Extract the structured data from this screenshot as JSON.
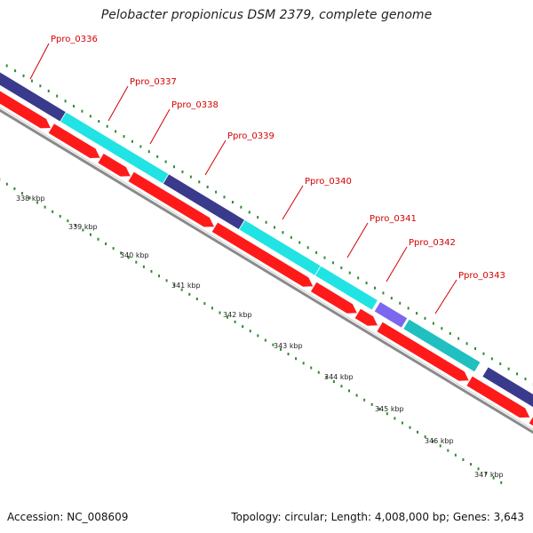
{
  "title": "Pelobacter propionicus DSM 2379, complete genome",
  "footer": {
    "accession": "Accession: NC_008609",
    "summary": "Topology: circular; Length: 4,008,000 bp; Genes: 3,643"
  },
  "genes": [
    "Ppro_0336",
    "Ppro_0337",
    "Ppro_0338",
    "Ppro_0339",
    "Ppro_0340",
    "Ppro_0341",
    "Ppro_0342",
    "Ppro_0343"
  ],
  "kbp_ticks": [
    "338 kbp",
    "339 kbp",
    "340 kbp",
    "341 kbp",
    "342 kbp",
    "343 kbp",
    "344 kbp",
    "345 kbp",
    "346 kbp",
    "347 kbp"
  ],
  "colors": {
    "forward_strand_navy": "#3a3a8c",
    "forward_strand_cyan": "#22e3e3",
    "forward_strand_teal": "#20c0c0",
    "forward_strand_violet": "#7b68ee",
    "cds_red": "#ff1a1a",
    "backbone": "#8a8a8a",
    "tick_green": "#2e8b2e",
    "label_red": "#d40000"
  }
}
